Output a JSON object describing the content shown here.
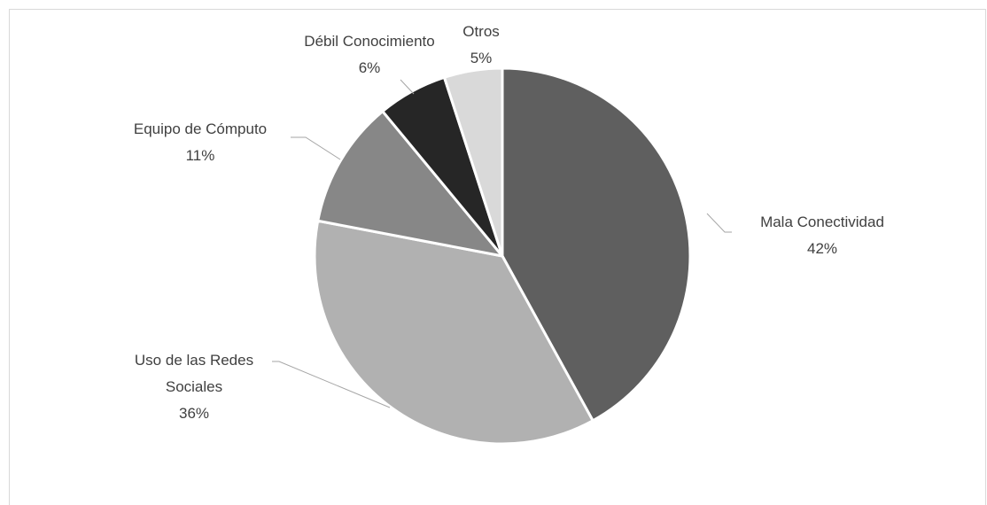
{
  "chart_data": {
    "type": "pie",
    "slices": [
      {
        "label": "Mala Conectividad",
        "label_lines": [
          "Mala Conectividad"
        ],
        "value": 42,
        "value_label": "42%",
        "color": "#5f5f5f"
      },
      {
        "label": "Uso de las Redes Sociales",
        "label_lines": [
          "Uso de las Redes",
          "Sociales"
        ],
        "value": 36,
        "value_label": "36%",
        "color": "#b1b1b1"
      },
      {
        "label": "Equipo de Cómputo",
        "label_lines": [
          "Equipo de Cómputo"
        ],
        "value": 11,
        "value_label": "11%",
        "color": "#878787"
      },
      {
        "label": "Débil Conocimiento",
        "label_lines": [
          "Débil Conocimiento"
        ],
        "value": 6,
        "value_label": "6%",
        "color": "#262626"
      },
      {
        "label": "Otros",
        "label_lines": [
          "Otros"
        ],
        "value": 5,
        "value_label": "5%",
        "color": "#d9d9d9"
      }
    ],
    "start_angle_deg": 0,
    "direction": "clockwise",
    "legend": "none",
    "data_labels": "outside-with-leader-lines"
  }
}
